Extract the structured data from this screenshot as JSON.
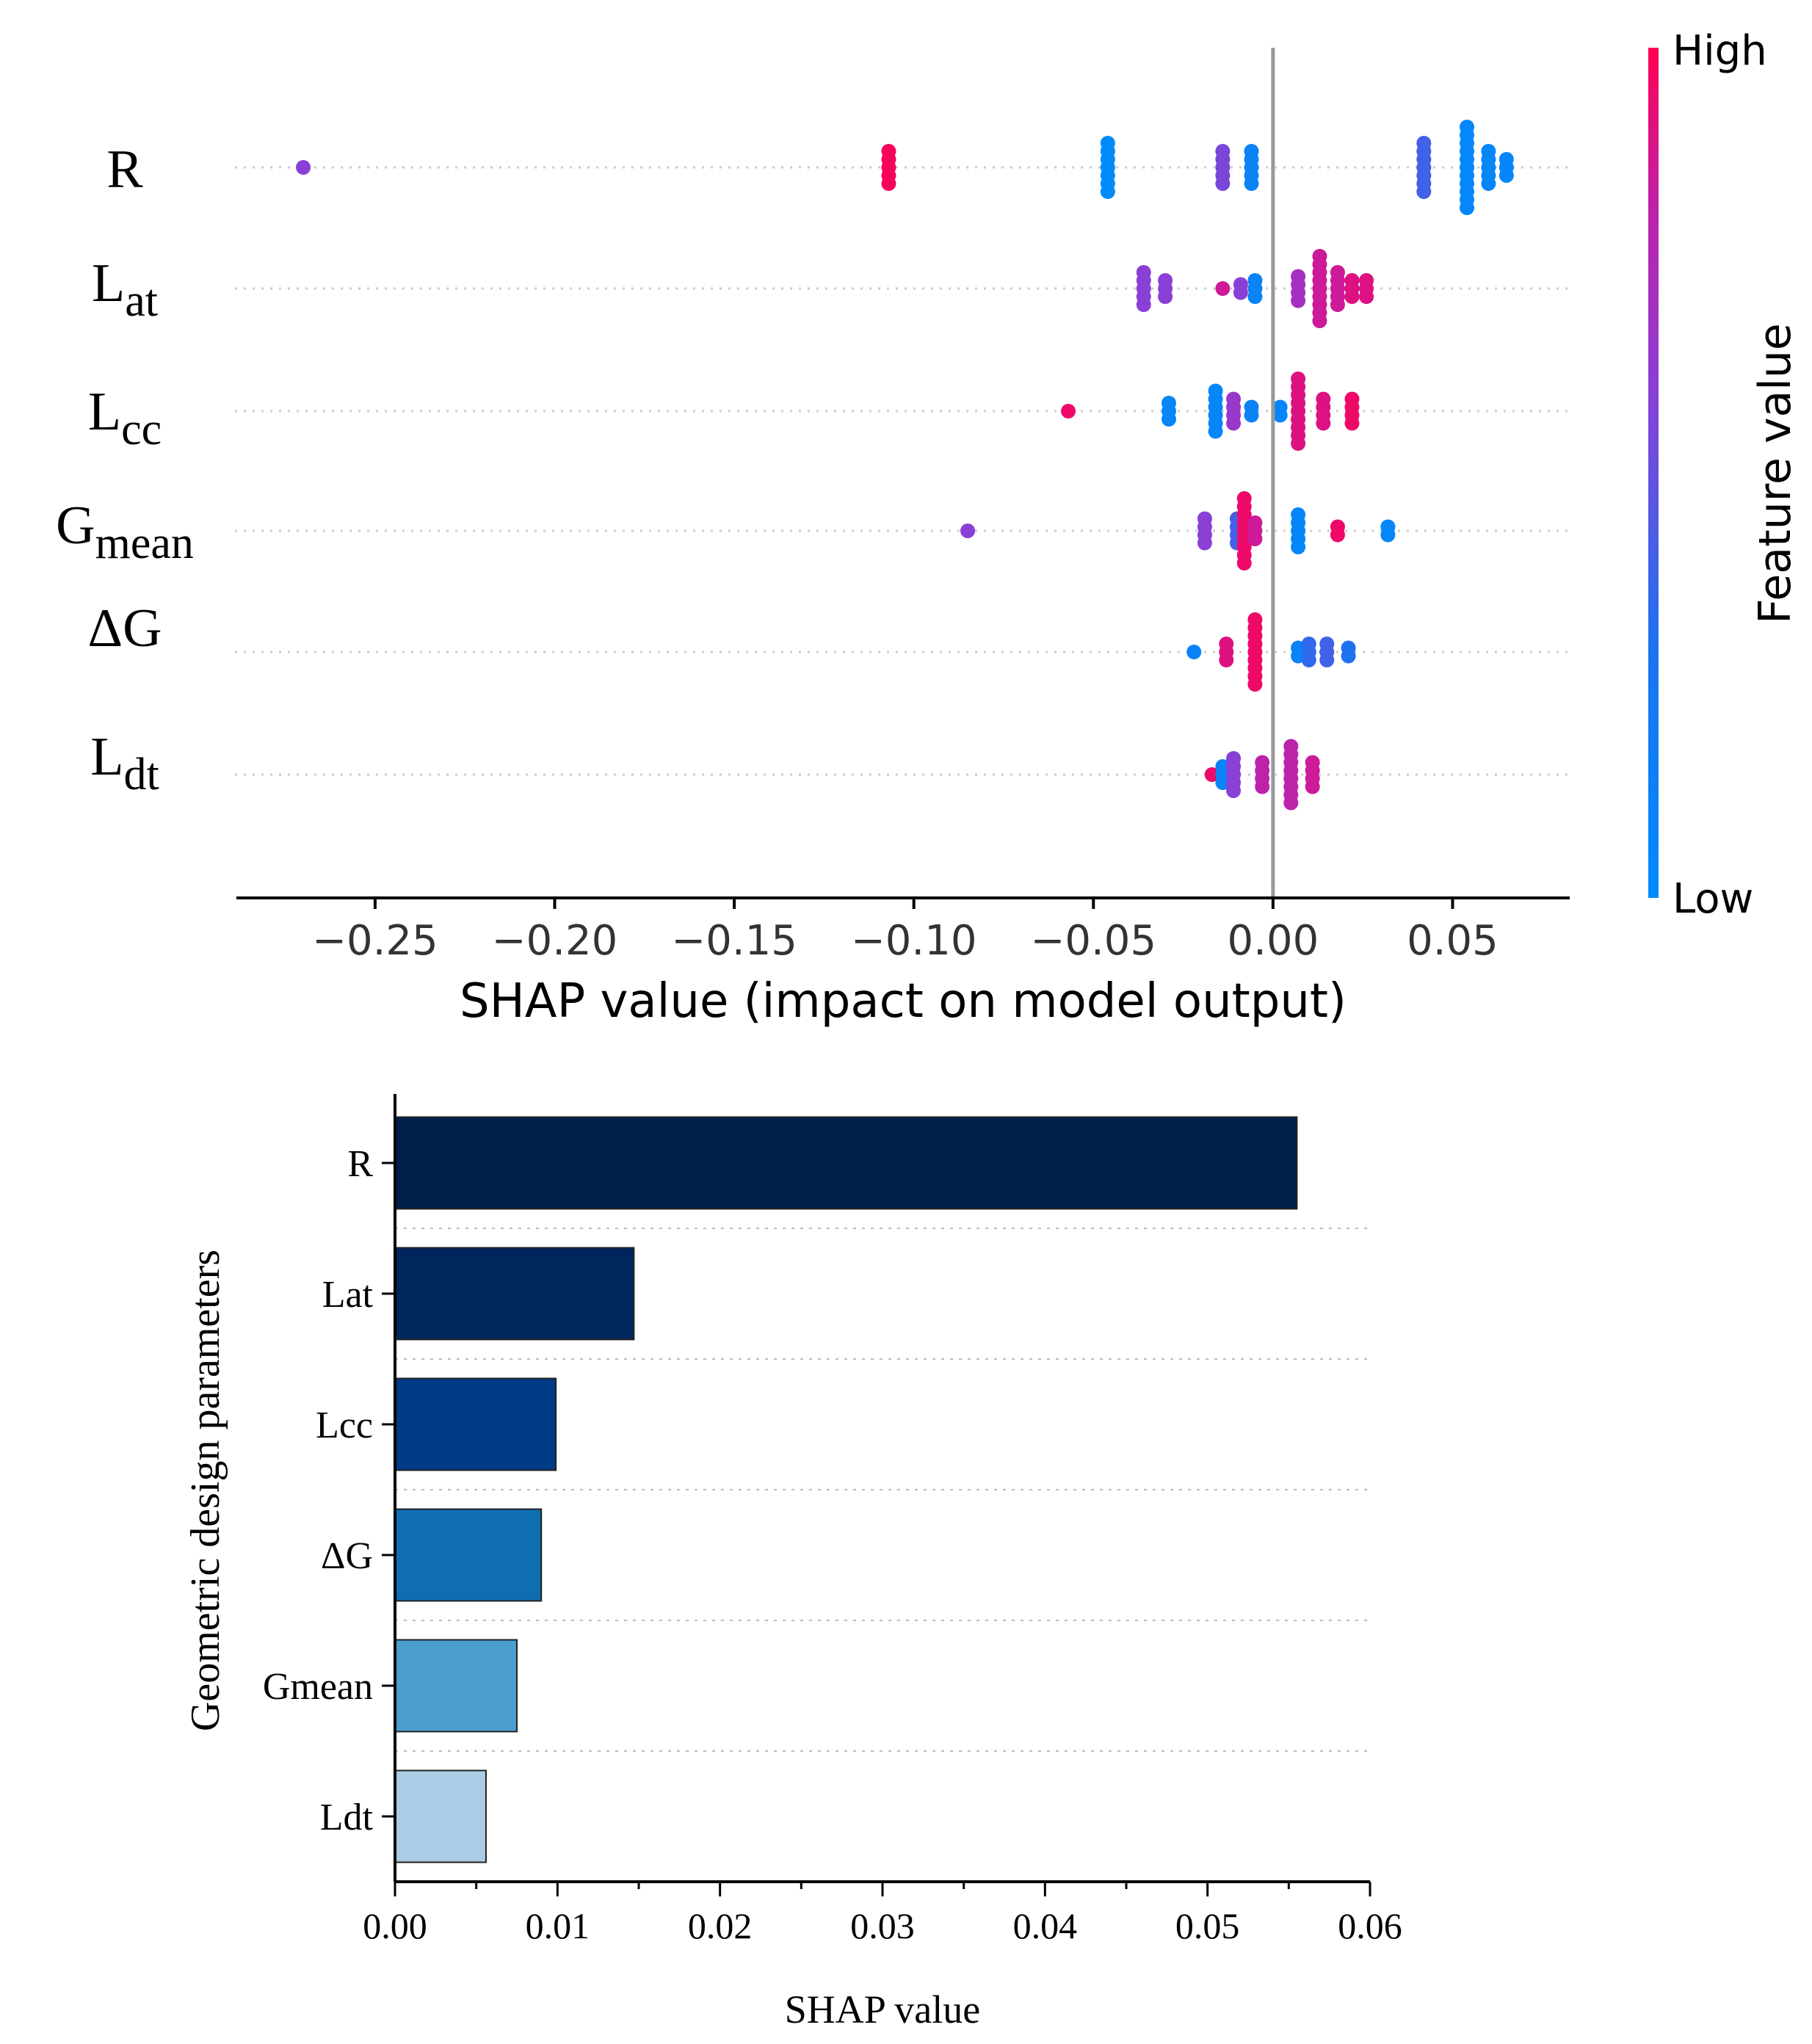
{
  "chart_data": [
    {
      "type": "scatter",
      "subtype": "shap-beeswarm",
      "xlabel": "SHAP value (impact on model output)",
      "xlim": [
        -0.288,
        0.082
      ],
      "xticks": [
        "−0.25",
        "−0.20",
        "−0.15",
        "−0.10",
        "−0.05",
        "0.00",
        "0.05"
      ],
      "xtick_values": [
        -0.25,
        -0.2,
        -0.15,
        -0.1,
        -0.05,
        0.0,
        0.05
      ],
      "colorbar": {
        "label": "Feature value",
        "high": "High",
        "low": "Low",
        "high_color": "#ff0052",
        "low_color": "#008bfb"
      },
      "features": [
        {
          "base": "R",
          "sub": "",
          "points": [
            {
              "x": -0.27,
              "c": 0.6,
              "n": 1
            },
            {
              "x": -0.107,
              "c": 0.98,
              "n": 5
            },
            {
              "x": -0.046,
              "c": 0.0,
              "n": 7
            },
            {
              "x": -0.014,
              "c": 0.55,
              "n": 5
            },
            {
              "x": -0.006,
              "c": 0.1,
              "n": 5
            },
            {
              "x": 0.042,
              "c": 0.4,
              "n": 7
            },
            {
              "x": 0.054,
              "c": 0.05,
              "n": 11
            },
            {
              "x": 0.06,
              "c": 0.05,
              "n": 5
            },
            {
              "x": 0.065,
              "c": 0.05,
              "n": 3
            }
          ]
        },
        {
          "base": "L",
          "sub": "at",
          "points": [
            {
              "x": -0.036,
              "c": 0.6,
              "n": 5
            },
            {
              "x": -0.03,
              "c": 0.6,
              "n": 3
            },
            {
              "x": -0.014,
              "c": 0.85,
              "n": 1
            },
            {
              "x": -0.009,
              "c": 0.6,
              "n": 2
            },
            {
              "x": -0.005,
              "c": 0.1,
              "n": 3
            },
            {
              "x": 0.007,
              "c": 0.7,
              "n": 4
            },
            {
              "x": 0.013,
              "c": 0.85,
              "n": 9
            },
            {
              "x": 0.018,
              "c": 0.85,
              "n": 5
            },
            {
              "x": 0.022,
              "c": 0.9,
              "n": 3
            },
            {
              "x": 0.026,
              "c": 0.9,
              "n": 3
            }
          ]
        },
        {
          "base": "L",
          "sub": "cc",
          "points": [
            {
              "x": -0.057,
              "c": 0.95,
              "n": 1
            },
            {
              "x": -0.029,
              "c": 0.05,
              "n": 3
            },
            {
              "x": -0.016,
              "c": 0.05,
              "n": 6
            },
            {
              "x": -0.011,
              "c": 0.65,
              "n": 4
            },
            {
              "x": -0.006,
              "c": 0.1,
              "n": 2
            },
            {
              "x": 0.002,
              "c": 0.05,
              "n": 2
            },
            {
              "x": 0.007,
              "c": 0.9,
              "n": 9
            },
            {
              "x": 0.014,
              "c": 0.9,
              "n": 4
            },
            {
              "x": 0.022,
              "c": 0.95,
              "n": 4
            }
          ]
        },
        {
          "base": "G",
          "sub": "mean",
          "points": [
            {
              "x": -0.085,
              "c": 0.6,
              "n": 1
            },
            {
              "x": -0.019,
              "c": 0.6,
              "n": 4
            },
            {
              "x": -0.01,
              "c": 0.4,
              "n": 4
            },
            {
              "x": -0.008,
              "c": 0.95,
              "n": 9
            },
            {
              "x": -0.005,
              "c": 0.85,
              "n": 3
            },
            {
              "x": 0.007,
              "c": 0.05,
              "n": 5
            },
            {
              "x": 0.018,
              "c": 0.95,
              "n": 2
            },
            {
              "x": 0.032,
              "c": 0.05,
              "n": 2
            }
          ]
        },
        {
          "base": "ΔG",
          "sub": "",
          "points": [
            {
              "x": -0.022,
              "c": 0.1,
              "n": 1
            },
            {
              "x": -0.013,
              "c": 0.9,
              "n": 3
            },
            {
              "x": -0.005,
              "c": 0.95,
              "n": 9
            },
            {
              "x": 0.007,
              "c": 0.1,
              "n": 2
            },
            {
              "x": 0.01,
              "c": 0.35,
              "n": 3
            },
            {
              "x": 0.015,
              "c": 0.4,
              "n": 3
            },
            {
              "x": 0.021,
              "c": 0.3,
              "n": 2
            }
          ]
        },
        {
          "base": "L",
          "sub": "dt",
          "points": [
            {
              "x": -0.017,
              "c": 0.95,
              "n": 1
            },
            {
              "x": -0.014,
              "c": 0.1,
              "n": 3
            },
            {
              "x": -0.011,
              "c": 0.6,
              "n": 5
            },
            {
              "x": -0.003,
              "c": 0.8,
              "n": 4
            },
            {
              "x": 0.005,
              "c": 0.8,
              "n": 8
            },
            {
              "x": 0.011,
              "c": 0.85,
              "n": 4
            }
          ]
        }
      ]
    },
    {
      "type": "bar",
      "orientation": "horizontal",
      "xlabel": "SHAP value",
      "ylabel": "Geometric design parameters",
      "xlim": [
        0,
        0.06
      ],
      "xticks": [
        "0.00",
        "0.01",
        "0.02",
        "0.03",
        "0.04",
        "0.05",
        "0.06"
      ],
      "xtick_values": [
        0,
        0.01,
        0.02,
        0.03,
        0.04,
        0.05,
        0.06
      ],
      "categories": [
        "R",
        "Lat",
        "Lcc",
        "ΔG",
        "Gmean",
        "Ldt"
      ],
      "values": [
        0.0555,
        0.0147,
        0.0099,
        0.009,
        0.0075,
        0.0056
      ],
      "colors": [
        "#001f4a",
        "#00265e",
        "#003b85",
        "#0f6eb0",
        "#4a9fce",
        "#abcce4"
      ]
    }
  ]
}
